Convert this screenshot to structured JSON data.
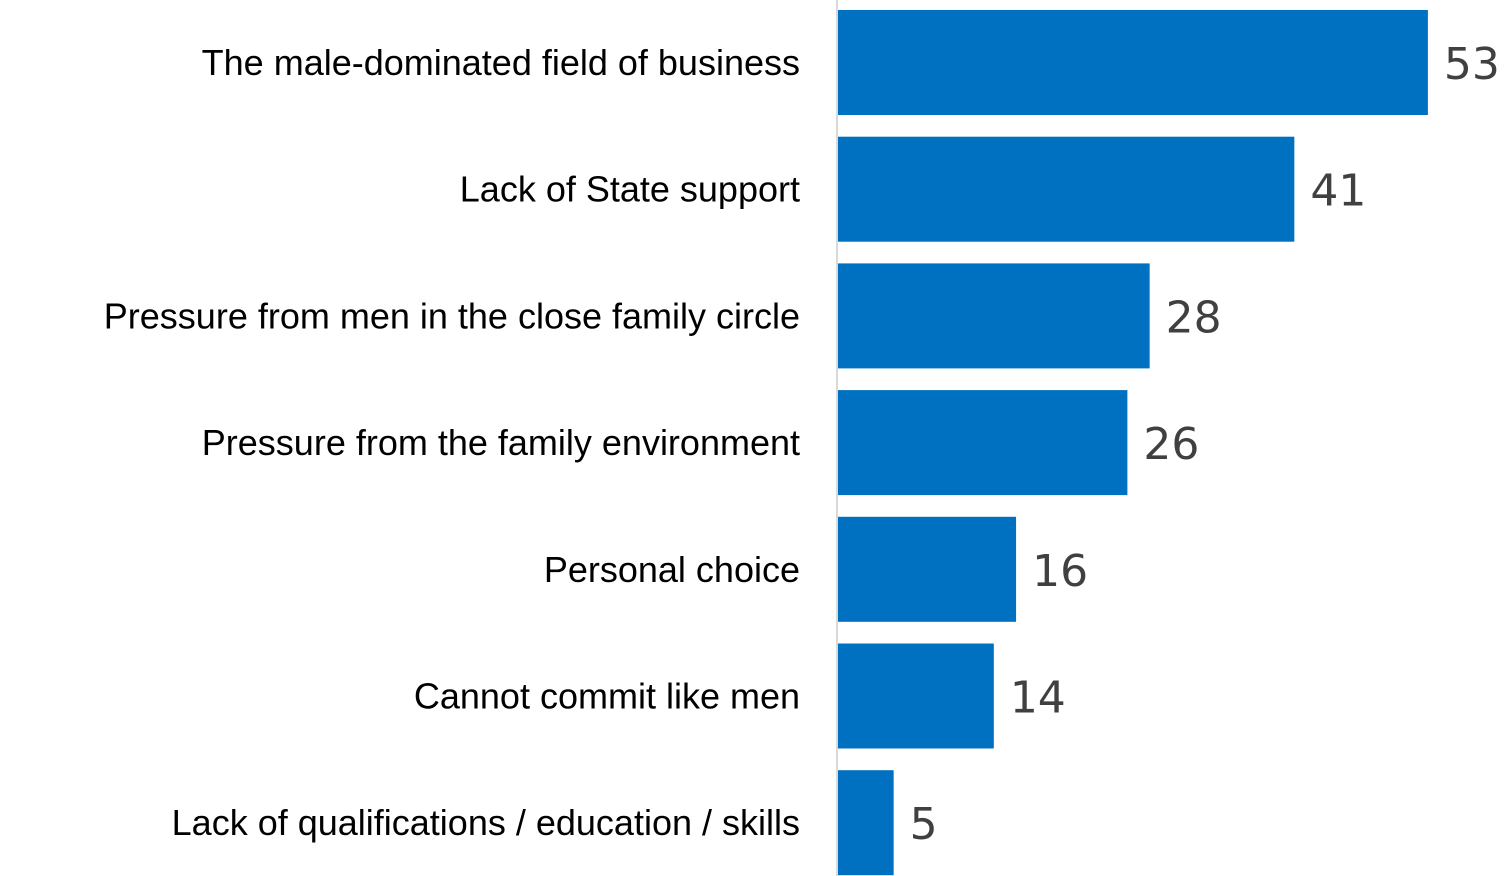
{
  "chart_data": {
    "type": "bar",
    "orientation": "horizontal",
    "categories": [
      "The male-dominated field of business",
      "Lack of State support",
      "Pressure from men in the close family circle",
      "Pressure from the family environment",
      "Personal choice",
      "Cannot commit like men",
      "Lack of qualifications / education / skills"
    ],
    "values": [
      53,
      41,
      28,
      26,
      16,
      14,
      5
    ],
    "title": "",
    "xlabel": "",
    "ylabel": "",
    "xlim": [
      0,
      60
    ],
    "grid": false,
    "legend": "none",
    "bar_color": "#0070C0",
    "axis_color": "#D9D9D9",
    "value_label_color": "#404040"
  }
}
